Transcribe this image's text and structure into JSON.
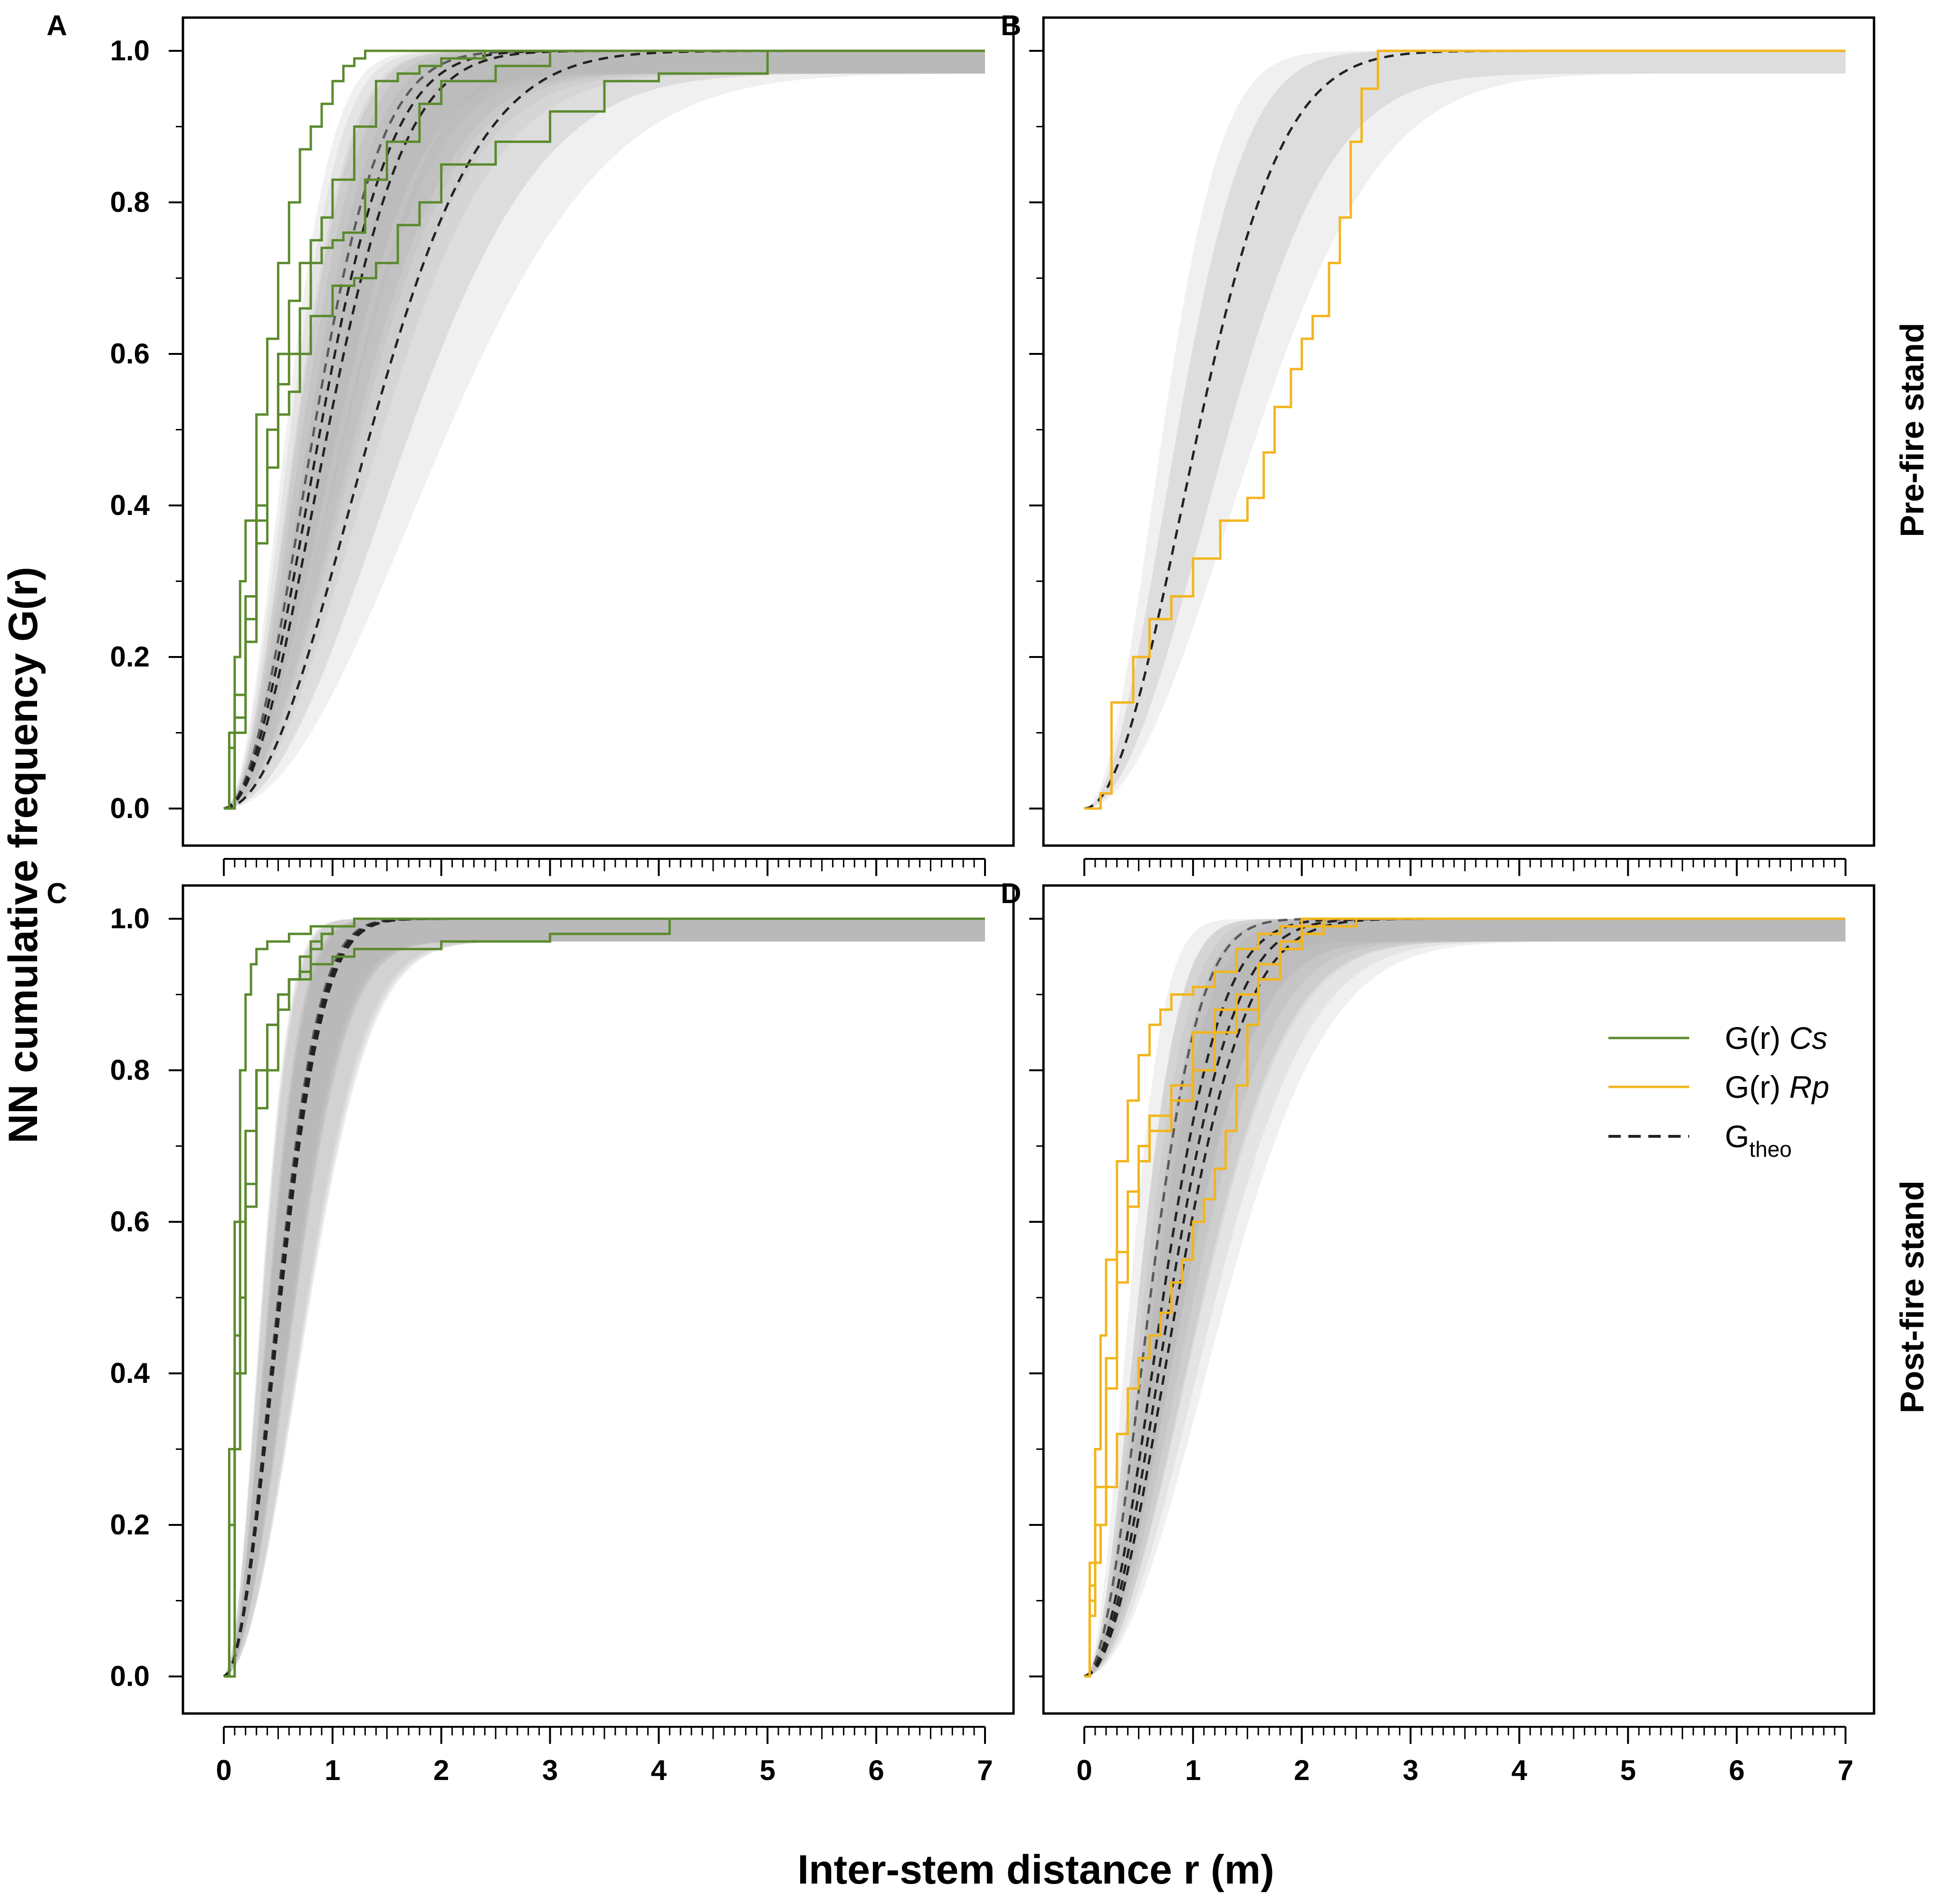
{
  "figure": {
    "ylabel": "NN cumulative frequency G(r)",
    "xlabel": "Inter-stem distance r (m)",
    "row_labels": [
      "Pre-fire stand",
      "Post-fire stand"
    ],
    "colors": {
      "cs_line": "#5b8a2e",
      "rp_line": "#f2b51c",
      "theo_line": "#222222",
      "envelope": "#b3b3b3"
    }
  },
  "legend": {
    "cs": {
      "label": "G(r) ",
      "species": "Cs"
    },
    "rp": {
      "label": "G(r) ",
      "species": "Rp"
    },
    "theo": {
      "label": "G",
      "sub": "theo"
    }
  },
  "chart_data": [
    {
      "panel": "A",
      "type": "line",
      "title": "",
      "row_label": "Pre-fire stand",
      "xlabel": "Inter-stem distance r (m)",
      "ylabel": "NN cumulative frequency G(r)",
      "xlim": [
        0,
        7
      ],
      "ylim": [
        0,
        1
      ],
      "xticks": [
        0,
        1,
        2,
        3,
        4,
        5,
        6,
        7
      ],
      "yticks": [
        0.0,
        0.2,
        0.4,
        0.6,
        0.8,
        1.0
      ],
      "grid": false,
      "legend": false,
      "observed_species": "Cs",
      "observed": [
        {
          "name": "G(r) Cs plot 1",
          "x": [
            0,
            0.05,
            0.1,
            0.15,
            0.2,
            0.3,
            0.4,
            0.5,
            0.6,
            0.7,
            0.8,
            0.9,
            1.0,
            1.1,
            1.2,
            1.3,
            1.5,
            7
          ],
          "y": [
            0,
            0.1,
            0.2,
            0.3,
            0.38,
            0.52,
            0.62,
            0.72,
            0.8,
            0.87,
            0.9,
            0.93,
            0.96,
            0.98,
            0.99,
            1.0,
            1.0,
            1.0
          ]
        },
        {
          "name": "G(r) Cs plot 2",
          "x": [
            0,
            0.05,
            0.1,
            0.2,
            0.3,
            0.4,
            0.5,
            0.6,
            0.7,
            0.8,
            0.9,
            1.0,
            1.2,
            1.4,
            1.6,
            1.8,
            2.0,
            2.4,
            7
          ],
          "y": [
            0,
            0.08,
            0.15,
            0.28,
            0.4,
            0.5,
            0.6,
            0.67,
            0.72,
            0.75,
            0.78,
            0.83,
            0.9,
            0.96,
            0.97,
            0.98,
            0.99,
            1.0,
            1.0
          ]
        },
        {
          "name": "G(r) Cs plot 3",
          "x": [
            0,
            0.1,
            0.2,
            0.3,
            0.4,
            0.5,
            0.6,
            0.7,
            0.8,
            0.9,
            1.0,
            1.1,
            1.3,
            1.5,
            1.8,
            2.0,
            2.5,
            3.0,
            7
          ],
          "y": [
            0,
            0.12,
            0.25,
            0.38,
            0.5,
            0.56,
            0.6,
            0.66,
            0.72,
            0.74,
            0.75,
            0.76,
            0.83,
            0.88,
            0.93,
            0.96,
            0.98,
            1.0,
            1.0
          ]
        },
        {
          "name": "G(r) Cs plot 4",
          "x": [
            0,
            0.1,
            0.2,
            0.3,
            0.4,
            0.5,
            0.6,
            0.7,
            0.8,
            1.0,
            1.2,
            1.4,
            1.6,
            1.8,
            2.0,
            2.5,
            3.0,
            3.5,
            4.0,
            4.5,
            5.0,
            7
          ],
          "y": [
            0,
            0.1,
            0.22,
            0.35,
            0.45,
            0.52,
            0.55,
            0.6,
            0.65,
            0.69,
            0.7,
            0.72,
            0.77,
            0.8,
            0.85,
            0.88,
            0.92,
            0.96,
            0.97,
            0.97,
            1.0,
            1.0
          ]
        }
      ],
      "theoretical": [
        {
          "name": "Gtheo plot 1",
          "lambda": 0.32
        },
        {
          "name": "Gtheo plot 2",
          "lambda": 0.28
        },
        {
          "name": "Gtheo plot 3",
          "lambda": 0.24
        },
        {
          "name": "Gtheo plot 4",
          "lambda": 0.12
        }
      ]
    },
    {
      "panel": "B",
      "type": "line",
      "title": "",
      "row_label": "Pre-fire stand",
      "xlabel": "Inter-stem distance r (m)",
      "ylabel": "NN cumulative frequency G(r)",
      "xlim": [
        0,
        7
      ],
      "ylim": [
        0,
        1
      ],
      "xticks": [
        0,
        1,
        2,
        3,
        4,
        5,
        6,
        7
      ],
      "yticks": [
        0.0,
        0.2,
        0.4,
        0.6,
        0.8,
        1.0
      ],
      "grid": false,
      "legend": false,
      "observed_species": "Rp",
      "observed": [
        {
          "name": "G(r) Rp plot 1",
          "x": [
            0,
            0.15,
            0.25,
            0.45,
            0.6,
            0.8,
            1.0,
            1.25,
            1.5,
            1.65,
            1.75,
            1.9,
            2.0,
            2.1,
            2.25,
            2.35,
            2.45,
            2.55,
            2.7,
            7
          ],
          "y": [
            0,
            0.02,
            0.14,
            0.2,
            0.25,
            0.28,
            0.33,
            0.38,
            0.41,
            0.47,
            0.53,
            0.58,
            0.62,
            0.65,
            0.72,
            0.78,
            0.88,
            0.95,
            1.0,
            1.0
          ]
        }
      ],
      "theoretical": [
        {
          "name": "Gtheo plot 1",
          "lambda": 0.2
        }
      ]
    },
    {
      "panel": "C",
      "type": "line",
      "title": "",
      "row_label": "Post-fire stand",
      "xlabel": "Inter-stem distance r (m)",
      "ylabel": "NN cumulative frequency G(r)",
      "xlim": [
        0,
        7
      ],
      "ylim": [
        0,
        1
      ],
      "xticks": [
        0,
        1,
        2,
        3,
        4,
        5,
        6,
        7
      ],
      "yticks": [
        0.0,
        0.2,
        0.4,
        0.6,
        0.8,
        1.0
      ],
      "grid": false,
      "legend": false,
      "observed_species": "Cs",
      "observed": [
        {
          "name": "G(r) Cs plot 1",
          "x": [
            0,
            0.05,
            0.1,
            0.15,
            0.2,
            0.25,
            0.3,
            0.4,
            0.5,
            0.6,
            0.8,
            1.2,
            7
          ],
          "y": [
            0,
            0.3,
            0.6,
            0.8,
            0.9,
            0.94,
            0.96,
            0.97,
            0.97,
            0.98,
            0.99,
            1.0,
            1.0
          ]
        },
        {
          "name": "G(r) Cs plot 2",
          "x": [
            0,
            0.05,
            0.1,
            0.15,
            0.2,
            0.3,
            0.4,
            0.5,
            0.6,
            0.7,
            0.8,
            0.9,
            1.0,
            1.2,
            2.0,
            7
          ],
          "y": [
            0,
            0.2,
            0.45,
            0.6,
            0.72,
            0.8,
            0.86,
            0.9,
            0.92,
            0.93,
            0.96,
            0.98,
            0.99,
            1.0,
            1.0,
            1.0
          ]
        },
        {
          "name": "G(r) Cs plot 3",
          "x": [
            0,
            0.1,
            0.15,
            0.2,
            0.3,
            0.4,
            0.5,
            0.6,
            0.7,
            0.8,
            0.9,
            1.0,
            1.2,
            7
          ],
          "y": [
            0,
            0.3,
            0.5,
            0.62,
            0.75,
            0.8,
            0.88,
            0.92,
            0.95,
            0.97,
            0.98,
            0.99,
            1.0,
            1.0
          ]
        },
        {
          "name": "G(r) Cs plot 4",
          "x": [
            0,
            0.05,
            0.1,
            0.2,
            0.3,
            0.4,
            0.5,
            0.6,
            0.8,
            1.0,
            1.2,
            1.5,
            2.0,
            2.5,
            3.0,
            4.0,
            4.1,
            7
          ],
          "y": [
            0,
            0.2,
            0.4,
            0.65,
            0.8,
            0.86,
            0.9,
            0.92,
            0.94,
            0.95,
            0.96,
            0.96,
            0.97,
            0.97,
            0.98,
            0.98,
            1.0,
            1.0
          ]
        }
      ],
      "theoretical": [
        {
          "name": "Gtheo plot 1",
          "lambda": 0.88
        },
        {
          "name": "Gtheo plot 2",
          "lambda": 0.85
        },
        {
          "name": "Gtheo plot 3",
          "lambda": 0.82
        },
        {
          "name": "Gtheo plot 4",
          "lambda": 0.8
        }
      ]
    },
    {
      "panel": "D",
      "type": "line",
      "title": "",
      "row_label": "Post-fire stand",
      "xlabel": "Inter-stem distance r (m)",
      "ylabel": "NN cumulative frequency G(r)",
      "xlim": [
        0,
        7
      ],
      "ylim": [
        0,
        1
      ],
      "xticks": [
        0,
        1,
        2,
        3,
        4,
        5,
        6,
        7
      ],
      "yticks": [
        0.0,
        0.2,
        0.4,
        0.6,
        0.8,
        1.0
      ],
      "grid": false,
      "legend": true,
      "legend_position": "top-right",
      "observed_species": "Rp",
      "observed": [
        {
          "name": "G(r) Rp plot 1",
          "x": [
            0,
            0.05,
            0.1,
            0.15,
            0.2,
            0.3,
            0.4,
            0.5,
            0.6,
            0.7,
            0.8,
            1.0,
            1.2,
            1.4,
            1.6,
            1.8,
            2.0,
            7
          ],
          "y": [
            0,
            0.15,
            0.3,
            0.45,
            0.55,
            0.68,
            0.76,
            0.82,
            0.86,
            0.88,
            0.9,
            0.91,
            0.93,
            0.96,
            0.98,
            0.99,
            1.0,
            1.0
          ]
        },
        {
          "name": "G(r) Rp plot 2",
          "x": [
            0,
            0.05,
            0.1,
            0.2,
            0.3,
            0.4,
            0.5,
            0.6,
            0.8,
            1.0,
            1.2,
            1.4,
            1.6,
            1.8,
            2.0,
            2.5,
            7
          ],
          "y": [
            0,
            0.12,
            0.25,
            0.42,
            0.56,
            0.64,
            0.7,
            0.74,
            0.78,
            0.85,
            0.88,
            0.9,
            0.94,
            0.97,
            0.99,
            1.0,
            1.0
          ]
        },
        {
          "name": "G(r) Rp plot 3",
          "x": [
            0,
            0.05,
            0.1,
            0.2,
            0.3,
            0.4,
            0.5,
            0.6,
            0.8,
            1.0,
            1.2,
            1.4,
            1.6,
            1.8,
            2.0,
            2.2,
            7
          ],
          "y": [
            0,
            0.1,
            0.2,
            0.38,
            0.52,
            0.62,
            0.68,
            0.72,
            0.76,
            0.8,
            0.85,
            0.88,
            0.92,
            0.96,
            0.98,
            1.0,
            1.0
          ]
        },
        {
          "name": "G(r) Rp plot 4",
          "x": [
            0,
            0.05,
            0.1,
            0.15,
            0.2,
            0.3,
            0.4,
            0.5,
            0.6,
            0.7,
            0.8,
            0.9,
            1.0,
            1.1,
            1.2,
            1.3,
            1.4,
            1.5,
            1.6,
            1.8,
            2.0,
            2.2,
            7
          ],
          "y": [
            0,
            0.08,
            0.15,
            0.2,
            0.25,
            0.32,
            0.38,
            0.42,
            0.45,
            0.48,
            0.52,
            0.55,
            0.6,
            0.63,
            0.67,
            0.72,
            0.78,
            0.86,
            0.92,
            0.96,
            0.98,
            1.0,
            1.0
          ]
        }
      ],
      "theoretical": [
        {
          "name": "Gtheo plot 1",
          "lambda": 0.6
        },
        {
          "name": "Gtheo plot 2",
          "lambda": 0.42
        },
        {
          "name": "Gtheo plot 3",
          "lambda": 0.35
        },
        {
          "name": "Gtheo plot 4",
          "lambda": 0.3
        }
      ]
    }
  ]
}
